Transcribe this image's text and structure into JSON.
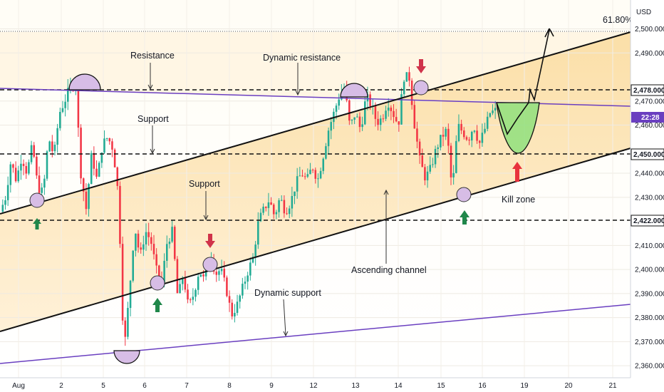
{
  "chart_data": {
    "type": "candlestick",
    "currency": "USD",
    "y_range": [
      2355,
      2512
    ],
    "y_ticks": [
      2360,
      2370,
      2380,
      2390,
      2400,
      2410,
      2430,
      2440,
      2460,
      2470,
      2490,
      2500
    ],
    "y_tick_labels": [
      "2,360.000",
      "2,370.000",
      "2,380.000",
      "2,390.000",
      "2,400.000",
      "2,410.000",
      "2,430.000",
      "2,440.000",
      "2,460.000",
      "2,470.000",
      "2,490.000",
      "2,500.000"
    ],
    "x_ticks": [
      "Aug",
      "2",
      "5",
      "6",
      "7",
      "8",
      "9",
      "12",
      "13",
      "14",
      "15",
      "16",
      "19",
      "20",
      "21"
    ],
    "fib_label": "61.80%",
    "fib_level": 2503.5,
    "horizontal_levels": [
      {
        "value": 2478,
        "label": "2,478.000"
      },
      {
        "value": 2450,
        "label": "2,450.000"
      },
      {
        "value": 2422,
        "label": "2,422.000"
      }
    ],
    "current_time_tag": "22:28",
    "current_price": 2465.5,
    "ohlc_path": [
      2424,
      2430,
      2445,
      2437,
      2447,
      2440,
      2452,
      2434,
      2432,
      2455,
      2447,
      2465,
      2470,
      2476,
      2478,
      2440,
      2425,
      2448,
      2437,
      2452,
      2455,
      2450,
      2430,
      2365,
      2390,
      2418,
      2405,
      2416,
      2412,
      2400,
      2394,
      2411,
      2416,
      2388,
      2398,
      2384,
      2390,
      2400,
      2395,
      2408,
      2398,
      2400,
      2392,
      2381,
      2385,
      2392,
      2399,
      2405,
      2420,
      2425,
      2429,
      2422,
      2430,
      2424,
      2428,
      2436,
      2440,
      2437,
      2443,
      2437,
      2447,
      2458,
      2465,
      2472,
      2476,
      2459,
      2465,
      2458,
      2472,
      2468,
      2461,
      2463,
      2470,
      2465,
      2460,
      2480,
      2480,
      2460,
      2445,
      2438,
      2442,
      2450,
      2455,
      2458,
      2432,
      2460,
      2457,
      2454,
      2460,
      2452,
      2458,
      2465,
      2466
    ]
  },
  "annotations": {
    "resistance": "Resistance",
    "dynamic_resistance": "Dynamic resistance",
    "support_1": "Support",
    "support_2": "Support",
    "ascending_channel": "Ascending channel",
    "dynamic_support": "Dynamic support",
    "kill_zone": "Kill zone"
  },
  "colors": {
    "bullish": "#22ab94",
    "bearish": "#f23645",
    "purple_line": "#6a3fc0",
    "marker_fill": "#d7bde6",
    "zone_fill": "#fbd9a0",
    "green_arrow": "#20874a",
    "red_arrow": "#d0334a",
    "kill_zone": "#8fe07d"
  }
}
